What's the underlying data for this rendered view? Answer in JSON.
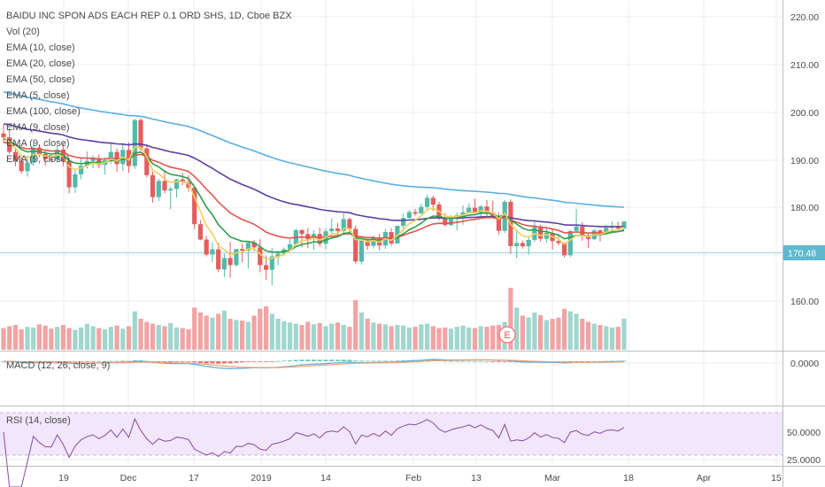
{
  "header": {
    "title": "BAIDU INC SPON ADS EACH REP 0.1 ORD SHS, 1D, Cboe BZX",
    "studies": [
      "Vol (20)",
      "EMA (10, close)",
      "EMA (20, close)",
      "EMA (50, close)",
      "EMA (5, close)",
      "EMA (100, close)",
      "EMA (9, close)",
      "EMA (9, close)",
      "EMA (9, close)"
    ]
  },
  "panes": {
    "macd_label": "MACD (12, 26, close, 9)",
    "rsi_label": "RSI (14, close)",
    "earnings_marker": "E"
  },
  "colors": {
    "up": "#53b9a8",
    "down": "#e45d5d",
    "vol_up": "#9fd6cd",
    "vol_down": "#f2a3a3",
    "ema10": "#2e9e4b",
    "ema20": "#e0554e",
    "ema50": "#5b3fa0",
    "ema5": "#f0d060",
    "ema100": "#5aaee2",
    "macd": "#5aaee2",
    "signal": "#f0a070",
    "rsi": "#8a4aa0",
    "rsi_band": "#f1e6fb",
    "price_tag": "#5fb8d0"
  },
  "chart_data": [
    {
      "type": "candlestick",
      "title": "BAIDU INC SPON ADS EACH REP 0.1 ORD SHS, 1D, Cboe BZX",
      "x_ticks": [
        "19",
        "Dec",
        "17",
        "2019",
        "14",
        "Feb",
        "13",
        "Mar",
        "18",
        "Apr",
        "15"
      ],
      "y_ticks": [
        "220.00",
        "210.00",
        "200.00",
        "190.00",
        "180.00",
        "170.00",
        "160.00"
      ],
      "ylim": [
        150.2,
        222.6
      ],
      "last_price": "170.48",
      "ohlc": [
        [
          192.9,
          195.1,
          190.6,
          191.9
        ],
        [
          191.9,
          194.2,
          187.7,
          188.2
        ],
        [
          188.2,
          189.3,
          184.6,
          185.9
        ],
        [
          185.9,
          186.9,
          182.7,
          183.3
        ],
        [
          183.3,
          187.3,
          181.9,
          185.5
        ],
        [
          185.5,
          190.5,
          184.6,
          189.3
        ],
        [
          189.3,
          190.2,
          186.8,
          187.7
        ],
        [
          187.7,
          188.6,
          184.6,
          186.4
        ],
        [
          186.4,
          187.5,
          185.5,
          186.3
        ],
        [
          186.3,
          189.6,
          185.5,
          188.8
        ],
        [
          188.8,
          190.2,
          184.6,
          185.8
        ],
        [
          185.8,
          186.7,
          177.7,
          179.2
        ],
        [
          179.2,
          183.7,
          177.8,
          182.5
        ],
        [
          182.5,
          186.8,
          181.2,
          184.7
        ],
        [
          184.7,
          188.3,
          184,
          185.9
        ],
        [
          185.9,
          187.3,
          184,
          186.6
        ],
        [
          186.6,
          187.5,
          184,
          184.9
        ],
        [
          184.9,
          186.8,
          182.4,
          186.1
        ],
        [
          186.1,
          190.6,
          185.1,
          188.2
        ],
        [
          188.2,
          189.1,
          183.1,
          185.1
        ],
        [
          185.1,
          190.5,
          183.4,
          188.7
        ],
        [
          188.7,
          190.7,
          182.9,
          184.6
        ],
        [
          184.6,
          196.6,
          183.9,
          196.3
        ],
        [
          196.3,
          196.8,
          188.5,
          189.1
        ],
        [
          189.1,
          190.1,
          181.7,
          182.3
        ],
        [
          182.3,
          183.2,
          175.3,
          176.7
        ],
        [
          176.7,
          181.4,
          175.7,
          180.8
        ],
        [
          180.8,
          183.6,
          177.7,
          178.4
        ],
        [
          178.4,
          179.4,
          173.6,
          178.8
        ],
        [
          178.8,
          181.4,
          176.6,
          181.2
        ],
        [
          181.2,
          182.8,
          179.7,
          180.5
        ],
        [
          180.5,
          182.3,
          178.1,
          179.1
        ],
        [
          179.1,
          179.2,
          168.6,
          169.8
        ],
        [
          169.8,
          170.9,
          165.7,
          165.9
        ],
        [
          165.9,
          166.8,
          161.6,
          162.1
        ],
        [
          162.1,
          165.2,
          160.1,
          163.4
        ],
        [
          163.4,
          165.1,
          157.6,
          158.3
        ],
        [
          158.3,
          162.3,
          156.4,
          161.2
        ],
        [
          161.2,
          165.3,
          156.2,
          159.4
        ],
        [
          159.4,
          163.5,
          158.9,
          163.5
        ],
        [
          163.5,
          164.9,
          160.1,
          163.1
        ],
        [
          163.1,
          165.2,
          158.5,
          165.1
        ],
        [
          165.1,
          165.8,
          162.9,
          163.9
        ],
        [
          163.9,
          166,
          157.6,
          159.4
        ],
        [
          159.4,
          161.8,
          155.6,
          158.2
        ],
        [
          158.2,
          163.7,
          154.2,
          161.6
        ],
        [
          161.6,
          163,
          159.4,
          162.3
        ],
        [
          162.3,
          163.9,
          161.7,
          163.4
        ],
        [
          163.4,
          166,
          162.9,
          164.7
        ],
        [
          164.7,
          168.7,
          164,
          168.3
        ],
        [
          168.3,
          168.6,
          163.9,
          167.3
        ],
        [
          167.3,
          168.8,
          163.7,
          166
        ],
        [
          166,
          168.3,
          163.3,
          167.3
        ],
        [
          167.3,
          169,
          164.1,
          164.8
        ],
        [
          164.8,
          168.8,
          163.4,
          168
        ],
        [
          168,
          171.3,
          167.4,
          168.7
        ],
        [
          168.7,
          170.1,
          167,
          168.1
        ],
        [
          168.1,
          172.7,
          167.6,
          171.1
        ],
        [
          171.1,
          171.5,
          167.2,
          168.6
        ],
        [
          168.6,
          169.5,
          159.8,
          160.3
        ],
        [
          160.3,
          166.5,
          159.5,
          165.6
        ],
        [
          165.6,
          166.2,
          163.3,
          164.3
        ],
        [
          164.3,
          166.9,
          163.6,
          166.4
        ],
        [
          166.4,
          167.4,
          163.2,
          164.4
        ],
        [
          164.4,
          168.6,
          163.5,
          167.8
        ],
        [
          167.8,
          168.8,
          164.3,
          164.9
        ],
        [
          164.9,
          169.4,
          164.9,
          169.4
        ],
        [
          169.4,
          172.5,
          168,
          171.4
        ],
        [
          171.4,
          173.4,
          171.2,
          172.9
        ],
        [
          172.9,
          173.7,
          172,
          172.5
        ],
        [
          172.5,
          175,
          172.5,
          174.2
        ],
        [
          174.2,
          177.3,
          173.4,
          176.5
        ],
        [
          176.5,
          177.1,
          173.2,
          174.8
        ],
        [
          174.8,
          175.5,
          170.8,
          171.4
        ],
        [
          171.4,
          172.7,
          169.2,
          169.6
        ],
        [
          169.6,
          172.1,
          169.3,
          171.1
        ],
        [
          171.1,
          172.8,
          168.3,
          172.1
        ],
        [
          172.1,
          174.6,
          169.7,
          172.8
        ],
        [
          172.8,
          175.1,
          172.8,
          174
        ],
        [
          174,
          176.3,
          172.7,
          172.7
        ],
        [
          172.7,
          174.6,
          171.8,
          174.3
        ],
        [
          174.3,
          176,
          171.7,
          172.7
        ],
        [
          172.7,
          175.8,
          171.5,
          171.8
        ],
        [
          171.8,
          172.8,
          167.2,
          168.1
        ],
        [
          168.1,
          175.9,
          167.6,
          175.5
        ],
        [
          175.5,
          176.1,
          162.3,
          164.2
        ],
        [
          164.2,
          168.5,
          161.2,
          165
        ],
        [
          165,
          165.6,
          163.6,
          164.2
        ],
        [
          164.2,
          166.8,
          162.1,
          165.8
        ],
        [
          165.8,
          170.9,
          165.3,
          169.1
        ],
        [
          169.1,
          169.7,
          165.4,
          166.1
        ],
        [
          166.1,
          169.1,
          165.1,
          167.6
        ],
        [
          167.6,
          168.7,
          163.3,
          165.5
        ],
        [
          165.5,
          167.3,
          164.4,
          165
        ],
        [
          165,
          165.2,
          161.3,
          161.9
        ],
        [
          161.9,
          168.4,
          161.4,
          168.1
        ],
        [
          168.1,
          173.7,
          167.8,
          169.2
        ],
        [
          169.2,
          170.4,
          165.6,
          166.8
        ],
        [
          166.8,
          167.5,
          163.8,
          166
        ],
        [
          166,
          168.6,
          165.8,
          168.2
        ],
        [
          168.2,
          168.5,
          165.4,
          167.3
        ],
        [
          167.3,
          169.6,
          167,
          168.9
        ],
        [
          168.9,
          170.5,
          167.6,
          169.2
        ],
        [
          169.2,
          170.4,
          168.1,
          168.7
        ],
        [
          168.7,
          170.6,
          168.6,
          170.48
        ]
      ],
      "volume_relative": [
        0.35,
        0.38,
        0.4,
        0.33,
        0.37,
        0.36,
        0.41,
        0.39,
        0.34,
        0.37,
        0.4,
        0.35,
        0.32,
        0.36,
        0.42,
        0.38,
        0.35,
        0.33,
        0.37,
        0.39,
        0.34,
        0.38,
        0.62,
        0.5,
        0.45,
        0.42,
        0.4,
        0.38,
        0.43,
        0.36,
        0.35,
        0.33,
        0.68,
        0.6,
        0.55,
        0.52,
        0.58,
        0.63,
        0.5,
        0.48,
        0.47,
        0.45,
        0.55,
        0.66,
        0.7,
        0.58,
        0.5,
        0.46,
        0.44,
        0.42,
        0.4,
        0.45,
        0.41,
        0.43,
        0.38,
        0.42,
        0.44,
        0.4,
        0.37,
        0.8,
        0.6,
        0.5,
        0.44,
        0.42,
        0.41,
        0.38,
        0.4,
        0.39,
        0.36,
        0.37,
        0.41,
        0.42,
        0.38,
        0.35,
        0.36,
        0.34,
        0.37,
        0.39,
        0.36,
        0.35,
        0.38,
        0.37,
        0.39,
        0.4,
        0.45,
        1,
        0.68,
        0.55,
        0.52,
        0.6,
        0.56,
        0.48,
        0.5,
        0.52,
        0.66,
        0.62,
        0.58,
        0.5,
        0.45,
        0.42,
        0.4,
        0.38,
        0.36,
        0.37,
        0.5
      ],
      "ema_periods": [
        10,
        20,
        50,
        5,
        100
      ]
    },
    {
      "type": "line",
      "title": "MACD (12, 26, close, 9)",
      "y_ticks": [
        "0.0000"
      ],
      "series": [
        "macd",
        "signal",
        "histogram"
      ]
    },
    {
      "type": "line",
      "title": "RSI (14, close)",
      "y_ticks": [
        "50.0000",
        "25.0000"
      ],
      "band": [
        30,
        70
      ],
      "series": [
        "rsi"
      ]
    }
  ]
}
